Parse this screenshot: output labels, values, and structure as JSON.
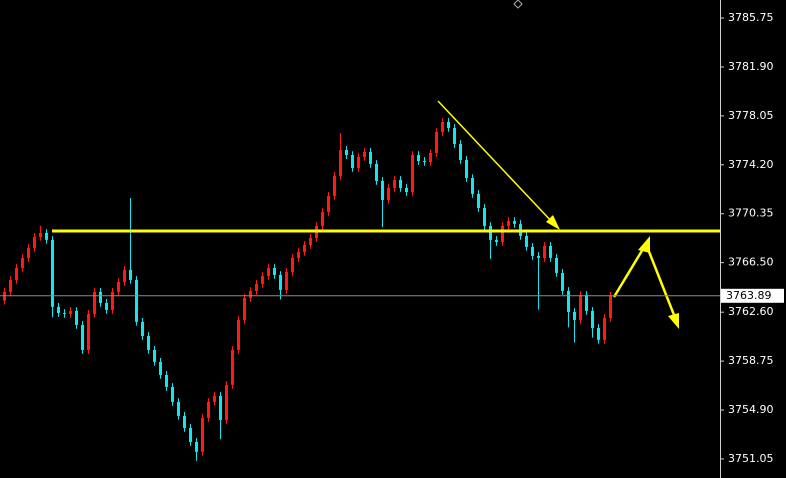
{
  "chart_data": {
    "type": "candlestick",
    "ylim": [
      3749.55,
      3787.17
    ],
    "yticks": [
      3785.75,
      {
        "value": 3781.9,
        "label": "3781.90"
      },
      {
        "value": 3778.05,
        "label": "3778.05"
      },
      {
        "value": 3774.2,
        "label": "3774.20"
      },
      3770.35,
      {
        "value": 3766.5,
        "label": "3766.50"
      },
      {
        "value": 3762.6,
        "label": "3762.60"
      },
      3758.75,
      {
        "value": 3754.9,
        "label": "3754.90"
      },
      3751.05
    ],
    "grid": false,
    "up_color": "#ff1a1a",
    "down_color": "#18e4ec",
    "last_price": 3763.89,
    "open": [
      3763.5,
      3764.2,
      3765.14,
      3766.08,
      3766.87,
      3767.66,
      3768.52,
      3768.84,
      3768.29,
      3763.02,
      3762.54,
      3762.46,
      3762.7,
      3761.6,
      3759.63,
      3762.46,
      3764.2,
      3763.33,
      3762.78,
      3764.2,
      3764.98,
      3765.93,
      3765.14,
      3761.84,
      3760.73,
      3759.63,
      3758.69,
      3757.66,
      3756.72,
      3755.54,
      3754.44,
      3753.49,
      3752.39,
      3751.61,
      3754.28,
      3755.54,
      3756.01,
      3754.12,
      3756.88,
      3759.63,
      3761.99,
      3763.72,
      3764.27,
      3764.82,
      3765.45,
      3766.08,
      3765.53,
      3764.35,
      3765.77,
      3766.87,
      3767.34,
      3767.89,
      3768.44,
      3769.39,
      3770.49,
      3771.75,
      3773.32,
      3775.37,
      3774.97,
      3773.95,
      3774.82,
      3775.21,
      3774.27,
      3772.93,
      3771.43,
      3772.38,
      3773.01,
      3772.38,
      3772.06,
      3774.97,
      3774.5,
      3774.42,
      3775.13,
      3776.78,
      3777.57,
      3777.1,
      3775.84,
      3774.58,
      3773.16,
      3771.91,
      3770.8,
      3769.39,
      3768.29,
      3768.13,
      3769.39,
      3769.78,
      3769.55,
      3768.6,
      3767.74,
      3767.03,
      3766.87,
      3767.81,
      3766.87,
      3765.69,
      3764.27,
      3762.62,
      3761.99,
      3763.96,
      3762.7,
      3761.36,
      3760.42,
      3762.15
    ],
    "high": [
      3764.5,
      3765.44,
      3766.38,
      3767.17,
      3767.96,
      3768.82,
      3769.4,
      3769.14,
      3768.59,
      3763.32,
      3762.84,
      3763.0,
      3763.0,
      3761.9,
      3762.76,
      3764.5,
      3764.5,
      3763.63,
      3764.5,
      3765.28,
      3766.23,
      3771.59,
      3765.44,
      3762.14,
      3761.03,
      3759.93,
      3758.99,
      3757.96,
      3757.02,
      3755.84,
      3754.74,
      3753.79,
      3752.69,
      3754.58,
      3755.84,
      3756.31,
      3756.31,
      3757.18,
      3759.93,
      3762.29,
      3764.02,
      3764.57,
      3765.12,
      3765.75,
      3766.38,
      3766.38,
      3765.83,
      3766.07,
      3767.17,
      3767.64,
      3768.19,
      3768.74,
      3769.69,
      3770.79,
      3772.05,
      3773.62,
      3776.7,
      3775.67,
      3775.27,
      3775.12,
      3775.51,
      3775.51,
      3774.57,
      3773.23,
      3772.68,
      3773.31,
      3773.31,
      3772.68,
      3775.27,
      3775.27,
      3774.8,
      3775.43,
      3777.08,
      3777.87,
      3777.87,
      3777.4,
      3776.14,
      3774.88,
      3773.46,
      3772.21,
      3771.1,
      3769.69,
      3768.59,
      3769.69,
      3770.08,
      3770.08,
      3769.85,
      3768.9,
      3768.04,
      3767.33,
      3768.11,
      3768.11,
      3767.17,
      3765.99,
      3764.57,
      3762.92,
      3764.26,
      3764.26,
      3763.0,
      3761.66,
      3762.45,
      3764.19
    ],
    "low": [
      3763.2,
      3763.9,
      3764.84,
      3765.78,
      3766.57,
      3767.36,
      3768.22,
      3767.99,
      3762.2,
      3762.24,
      3762.16,
      3762.16,
      3761.3,
      3759.33,
      3759.33,
      3762.16,
      3763.03,
      3762.48,
      3762.48,
      3763.9,
      3764.68,
      3764.84,
      3761.54,
      3760.43,
      3759.33,
      3758.39,
      3757.36,
      3756.42,
      3755.24,
      3754.14,
      3753.19,
      3752.09,
      3750.9,
      3751.31,
      3753.98,
      3755.24,
      3752.6,
      3753.82,
      3756.58,
      3759.33,
      3761.69,
      3763.42,
      3763.97,
      3764.52,
      3765.15,
      3765.23,
      3763.6,
      3764.05,
      3765.47,
      3766.57,
      3767.04,
      3767.59,
      3768.14,
      3769.09,
      3770.19,
      3771.45,
      3773.02,
      3774.67,
      3773.65,
      3773.65,
      3774.52,
      3773.97,
      3772.63,
      3769.3,
      3771.13,
      3772.08,
      3772.08,
      3771.76,
      3771.76,
      3774.2,
      3774.12,
      3774.12,
      3774.83,
      3776.48,
      3776.8,
      3775.54,
      3774.28,
      3772.86,
      3771.61,
      3770.5,
      3769.09,
      3766.8,
      3767.83,
      3767.83,
      3769.09,
      3769.25,
      3768.3,
      3767.44,
      3766.73,
      3762.8,
      3766.57,
      3766.57,
      3765.39,
      3763.97,
      3761.4,
      3760.2,
      3761.69,
      3762.4,
      3760.6,
      3760.12,
      3760.12,
      3761.85
    ],
    "close": [
      3764.2,
      3765.14,
      3766.08,
      3766.87,
      3767.66,
      3768.52,
      3768.84,
      3768.29,
      3763.02,
      3762.54,
      3762.46,
      3762.7,
      3761.6,
      3759.63,
      3762.46,
      3764.2,
      3763.33,
      3762.78,
      3764.2,
      3764.98,
      3765.93,
      3765.14,
      3761.84,
      3760.73,
      3759.63,
      3758.69,
      3757.66,
      3756.72,
      3755.54,
      3754.44,
      3753.49,
      3752.39,
      3751.61,
      3754.28,
      3755.54,
      3756.01,
      3754.12,
      3756.88,
      3759.63,
      3761.99,
      3763.72,
      3764.27,
      3764.82,
      3765.45,
      3766.08,
      3765.53,
      3764.35,
      3765.77,
      3766.87,
      3767.34,
      3767.89,
      3768.44,
      3769.39,
      3770.49,
      3771.75,
      3773.32,
      3775.37,
      3774.97,
      3773.95,
      3774.82,
      3775.21,
      3774.27,
      3772.93,
      3771.43,
      3772.38,
      3773.01,
      3772.38,
      3772.06,
      3774.97,
      3774.5,
      3774.42,
      3775.13,
      3776.78,
      3777.57,
      3777.1,
      3775.84,
      3774.58,
      3773.16,
      3771.91,
      3770.8,
      3769.39,
      3768.29,
      3768.13,
      3769.39,
      3769.78,
      3769.55,
      3768.6,
      3767.74,
      3767.03,
      3766.87,
      3767.81,
      3766.87,
      3765.69,
      3764.27,
      3762.62,
      3761.99,
      3763.96,
      3762.7,
      3761.36,
      3760.42,
      3762.15,
      3763.89
    ]
  }
}
